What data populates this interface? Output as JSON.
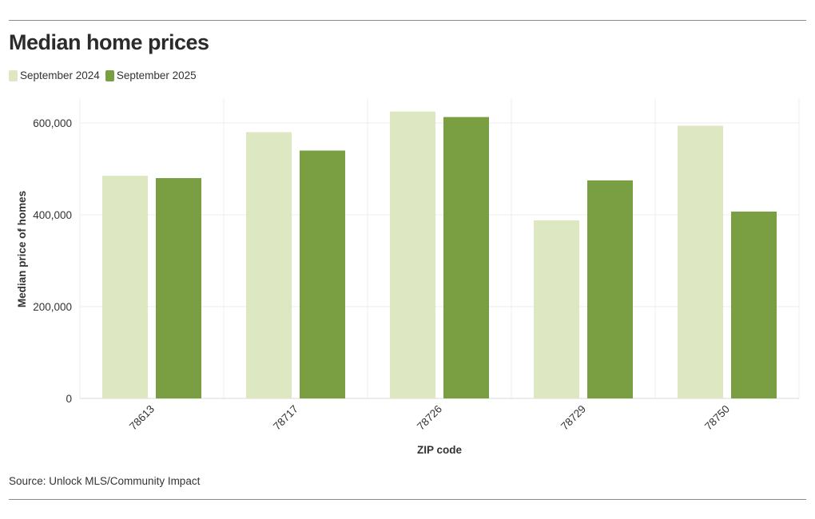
{
  "title": "Median home prices",
  "source": "Source: Unlock MLS/Community Impact",
  "colors": {
    "september_2024": "#dde8c3",
    "september_2025": "#7a9f42"
  },
  "chart_data": {
    "type": "bar",
    "title": "Median home prices",
    "xlabel": "ZIP code",
    "ylabel": "Median price of homes",
    "categories": [
      "78613",
      "78717",
      "78726",
      "78729",
      "78750"
    ],
    "series": [
      {
        "name": "September 2024",
        "values": [
          485000,
          580000,
          625000,
          388000,
          594000
        ]
      },
      {
        "name": "September 2025",
        "values": [
          480000,
          540000,
          613000,
          475000,
          407000
        ]
      }
    ],
    "ylim": [
      0,
      650000
    ],
    "yticks": [
      0,
      200000,
      400000,
      600000
    ],
    "ytick_labels": [
      "0",
      "200,000",
      "400,000",
      "600,000"
    ],
    "grid": true,
    "legend": "top-left"
  }
}
